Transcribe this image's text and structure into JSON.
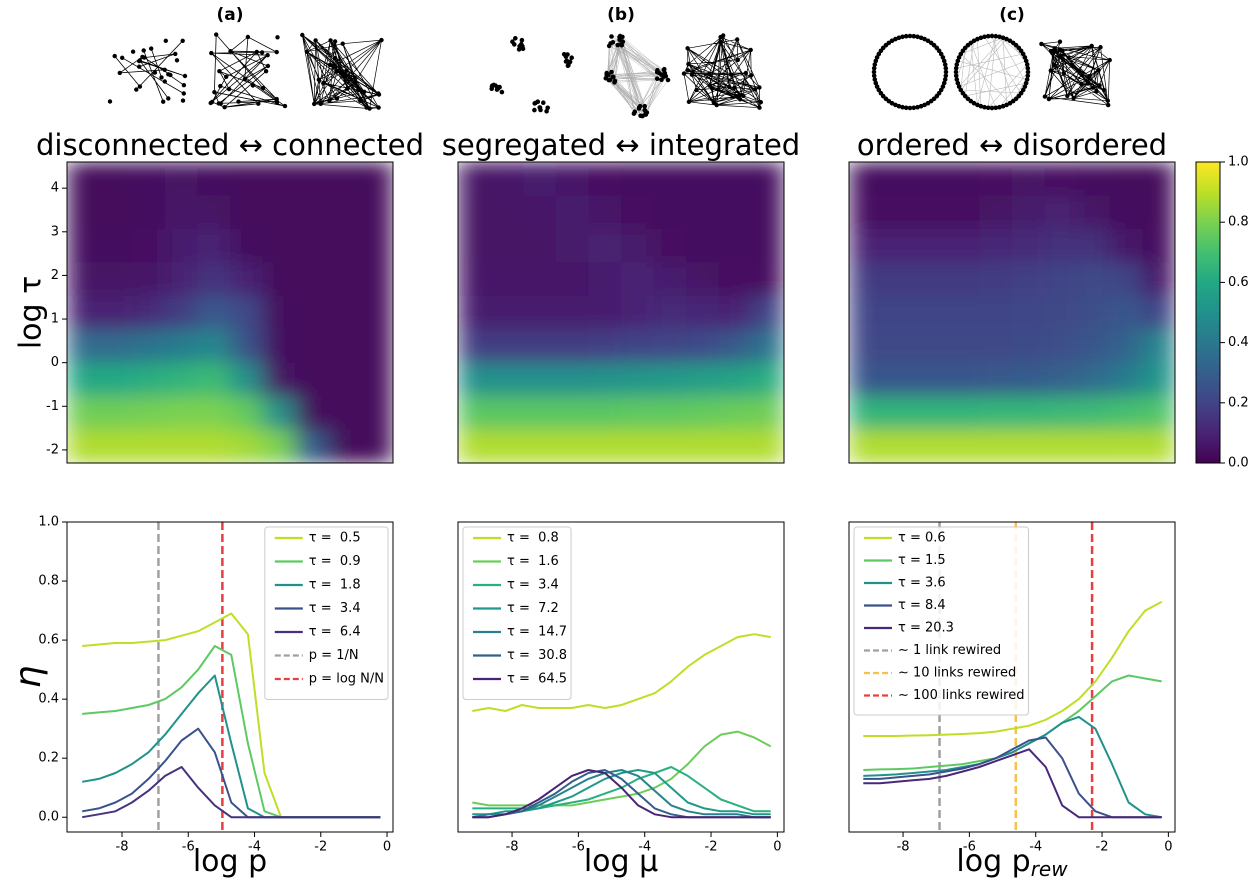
{
  "chart_data": [
    {
      "type": "heatmap",
      "title": "(a)",
      "subtitle": "disconnected ↔ connected",
      "ylabel": "log τ",
      "cmap": "viridis",
      "clim": [
        0,
        1
      ],
      "xlim": [
        -9.2,
        -0.2
      ],
      "ylim": [
        -2.3,
        4.6
      ],
      "yticks": [
        -2,
        -1,
        0,
        1,
        2,
        3,
        4
      ],
      "values": [
        [
          0.02,
          0.02,
          0.03,
          0.05,
          0.03,
          0.02,
          0.02,
          0.02,
          0.02,
          0.02
        ],
        [
          0.02,
          0.02,
          0.03,
          0.06,
          0.05,
          0.02,
          0.02,
          0.02,
          0.02,
          0.02
        ],
        [
          0.03,
          0.03,
          0.04,
          0.08,
          0.1,
          0.03,
          0.02,
          0.02,
          0.02,
          0.02
        ],
        [
          0.05,
          0.05,
          0.06,
          0.1,
          0.15,
          0.1,
          0.02,
          0.02,
          0.02,
          0.02
        ],
        [
          0.1,
          0.1,
          0.12,
          0.18,
          0.28,
          0.22,
          0.03,
          0.02,
          0.02,
          0.02
        ],
        [
          0.35,
          0.35,
          0.38,
          0.42,
          0.46,
          0.25,
          0.03,
          0.02,
          0.02,
          0.02
        ],
        [
          0.6,
          0.6,
          0.62,
          0.65,
          0.68,
          0.5,
          0.05,
          0.02,
          0.02,
          0.02
        ],
        [
          0.78,
          0.78,
          0.79,
          0.8,
          0.8,
          0.76,
          0.5,
          0.02,
          0.02,
          0.02
        ],
        [
          0.88,
          0.88,
          0.88,
          0.88,
          0.88,
          0.86,
          0.8,
          0.3,
          0.02,
          0.02
        ]
      ]
    },
    {
      "type": "heatmap",
      "title": "(b)",
      "subtitle": "segregated ↔ integrated",
      "cmap": "viridis",
      "clim": [
        0,
        1
      ],
      "xlim": [
        -9.2,
        -0.2
      ],
      "ylim": [
        -2.3,
        4.6
      ],
      "values": [
        [
          0.05,
          0.06,
          0.08,
          0.06,
          0.04,
          0.03,
          0.03,
          0.03,
          0.03,
          0.03
        ],
        [
          0.05,
          0.05,
          0.06,
          0.08,
          0.06,
          0.04,
          0.03,
          0.03,
          0.03,
          0.03
        ],
        [
          0.05,
          0.05,
          0.05,
          0.07,
          0.09,
          0.07,
          0.04,
          0.03,
          0.03,
          0.03
        ],
        [
          0.06,
          0.06,
          0.06,
          0.06,
          0.08,
          0.1,
          0.08,
          0.05,
          0.04,
          0.04
        ],
        [
          0.08,
          0.08,
          0.08,
          0.08,
          0.08,
          0.1,
          0.12,
          0.11,
          0.1,
          0.2
        ],
        [
          0.18,
          0.18,
          0.18,
          0.18,
          0.19,
          0.2,
          0.21,
          0.23,
          0.28,
          0.38
        ],
        [
          0.5,
          0.5,
          0.5,
          0.5,
          0.51,
          0.52,
          0.54,
          0.56,
          0.58,
          0.62
        ],
        [
          0.74,
          0.74,
          0.74,
          0.74,
          0.74,
          0.75,
          0.75,
          0.76,
          0.77,
          0.78
        ],
        [
          0.88,
          0.88,
          0.88,
          0.88,
          0.88,
          0.88,
          0.88,
          0.88,
          0.88,
          0.88
        ]
      ]
    },
    {
      "type": "heatmap",
      "title": "(c)",
      "subtitle": "ordered ↔ disordered",
      "cmap": "viridis",
      "clim": [
        0,
        1
      ],
      "xlim": [
        -9.2,
        -0.2
      ],
      "ylim": [
        -2.3,
        4.6
      ],
      "values": [
        [
          0.03,
          0.03,
          0.03,
          0.03,
          0.04,
          0.05,
          0.04,
          0.03,
          0.02,
          0.02
        ],
        [
          0.04,
          0.04,
          0.04,
          0.04,
          0.05,
          0.07,
          0.09,
          0.05,
          0.03,
          0.02
        ],
        [
          0.1,
          0.1,
          0.1,
          0.1,
          0.11,
          0.12,
          0.14,
          0.14,
          0.06,
          0.03
        ],
        [
          0.17,
          0.17,
          0.17,
          0.17,
          0.18,
          0.19,
          0.2,
          0.22,
          0.2,
          0.06
        ],
        [
          0.2,
          0.2,
          0.2,
          0.2,
          0.2,
          0.21,
          0.22,
          0.24,
          0.27,
          0.2
        ],
        [
          0.22,
          0.22,
          0.22,
          0.22,
          0.22,
          0.23,
          0.24,
          0.27,
          0.32,
          0.45
        ],
        [
          0.27,
          0.27,
          0.27,
          0.27,
          0.28,
          0.29,
          0.31,
          0.35,
          0.42,
          0.52
        ],
        [
          0.65,
          0.65,
          0.65,
          0.65,
          0.66,
          0.66,
          0.67,
          0.68,
          0.7,
          0.72
        ],
        [
          0.88,
          0.88,
          0.88,
          0.88,
          0.88,
          0.88,
          0.88,
          0.88,
          0.88,
          0.88
        ]
      ]
    },
    {
      "type": "colorbar",
      "cmap": "viridis",
      "ylim": [
        0,
        1
      ],
      "yticks": [
        {
          "value": 0,
          "label": "0.0"
        },
        0.2,
        0.4,
        0.6,
        0.8,
        {
          "value": 1,
          "label": "1.0"
        }
      ]
    },
    {
      "type": "line",
      "xlabel": "log p",
      "ylabel": "η",
      "legend": "upper right",
      "xlim": [
        -9.66,
        0.18
      ],
      "ylim": [
        -0.05,
        1.0
      ],
      "xticks": [
        -8,
        -6,
        -4,
        -2,
        0
      ],
      "yticks": [
        {
          "value": 0,
          "label": "0.0"
        },
        0.2,
        0.4,
        0.6,
        0.8,
        {
          "value": 1,
          "label": "1.0"
        }
      ],
      "x": [
        -9.2,
        -8.7,
        -8.2,
        -7.7,
        -7.2,
        -6.7,
        -6.2,
        -5.7,
        -5.2,
        -4.7,
        -4.2,
        -3.7,
        -3.2,
        -2.7,
        -2.2,
        -1.7,
        -1.2,
        -0.7,
        -0.2
      ],
      "series": [
        {
          "name": "τ =  0.5",
          "color": "#bddf26",
          "values": [
            0.58,
            0.585,
            0.59,
            0.59,
            0.595,
            0.6,
            0.615,
            0.63,
            0.66,
            0.69,
            0.62,
            0.15,
            0.0,
            0,
            0,
            0,
            0,
            0,
            0
          ]
        },
        {
          "name": "τ =  0.9",
          "color": "#5ec962",
          "values": [
            0.35,
            0.355,
            0.36,
            0.37,
            0.38,
            0.4,
            0.44,
            0.5,
            0.58,
            0.55,
            0.25,
            0.02,
            0,
            0,
            0,
            0,
            0,
            0,
            0
          ]
        },
        {
          "name": "τ =  1.8",
          "color": "#21918c",
          "values": [
            0.12,
            0.13,
            0.15,
            0.18,
            0.22,
            0.28,
            0.35,
            0.42,
            0.48,
            0.25,
            0.03,
            0,
            0,
            0,
            0,
            0,
            0,
            0,
            0
          ]
        },
        {
          "name": "τ =  3.4",
          "color": "#3b528b",
          "values": [
            0.02,
            0.03,
            0.05,
            0.08,
            0.13,
            0.19,
            0.26,
            0.3,
            0.22,
            0.05,
            0,
            0,
            0,
            0,
            0,
            0,
            0,
            0,
            0
          ]
        },
        {
          "name": "τ =  6.4",
          "color": "#46327e",
          "values": [
            0.0,
            0.01,
            0.02,
            0.05,
            0.09,
            0.14,
            0.17,
            0.1,
            0.04,
            0.0,
            0,
            0,
            0,
            0,
            0,
            0,
            0,
            0,
            0
          ]
        }
      ],
      "vlines": [
        {
          "name": "p = 1/N",
          "x": -6.9,
          "color": "#a0a0a0"
        },
        {
          "name": "p = log N/N",
          "x": -4.97,
          "color": "#e84040"
        }
      ]
    },
    {
      "type": "line",
      "xlabel": "log μ",
      "legend": "upper left",
      "xlim": [
        -9.63,
        0.2
      ],
      "ylim": [
        -0.05,
        1.0
      ],
      "xticks": [
        -8,
        -6,
        -4,
        -2,
        0
      ],
      "x": [
        -9.2,
        -8.7,
        -8.2,
        -7.7,
        -7.2,
        -6.7,
        -6.2,
        -5.7,
        -5.2,
        -4.7,
        -4.2,
        -3.7,
        -3.2,
        -2.7,
        -2.2,
        -1.7,
        -1.2,
        -0.7,
        -0.2
      ],
      "series": [
        {
          "name": "τ =  0.8",
          "color": "#bddf26",
          "values": [
            0.36,
            0.37,
            0.36,
            0.38,
            0.37,
            0.37,
            0.37,
            0.38,
            0.37,
            0.38,
            0.4,
            0.42,
            0.46,
            0.51,
            0.55,
            0.58,
            0.61,
            0.62,
            0.61
          ]
        },
        {
          "name": "τ =  1.6",
          "color": "#6ccd5a",
          "values": [
            0.05,
            0.04,
            0.04,
            0.04,
            0.04,
            0.04,
            0.04,
            0.05,
            0.06,
            0.07,
            0.08,
            0.1,
            0.13,
            0.18,
            0.24,
            0.28,
            0.29,
            0.27,
            0.24
          ]
        },
        {
          "name": "τ =  3.4",
          "color": "#2ab07f",
          "values": [
            0.03,
            0.03,
            0.03,
            0.03,
            0.03,
            0.04,
            0.05,
            0.06,
            0.08,
            0.1,
            0.13,
            0.15,
            0.17,
            0.14,
            0.1,
            0.06,
            0.04,
            0.02,
            0.02
          ]
        },
        {
          "name": "τ =  7.2",
          "color": "#1f9a8a",
          "values": [
            0.01,
            0.01,
            0.02,
            0.02,
            0.03,
            0.05,
            0.07,
            0.1,
            0.13,
            0.15,
            0.16,
            0.15,
            0.1,
            0.05,
            0.03,
            0.02,
            0.02,
            0.01,
            0.01
          ]
        },
        {
          "name": "τ =  14.7",
          "color": "#26828e",
          "values": [
            0.0,
            0.01,
            0.01,
            0.02,
            0.04,
            0.07,
            0.1,
            0.13,
            0.15,
            0.16,
            0.14,
            0.09,
            0.04,
            0.02,
            0.01,
            0.01,
            0.01,
            0.0,
            0.0
          ]
        },
        {
          "name": "τ =  30.8",
          "color": "#355f8d",
          "values": [
            0,
            0,
            0.01,
            0.02,
            0.05,
            0.08,
            0.12,
            0.15,
            0.16,
            0.13,
            0.08,
            0.03,
            0.01,
            0,
            0,
            0,
            0,
            0,
            0
          ]
        },
        {
          "name": "τ =  64.5",
          "color": "#482475",
          "values": [
            0,
            0,
            0.01,
            0.03,
            0.06,
            0.1,
            0.14,
            0.16,
            0.15,
            0.1,
            0.04,
            0.01,
            0,
            0,
            0,
            0,
            0,
            0,
            0
          ]
        }
      ]
    },
    {
      "type": "line",
      "xlabel": "log p",
      "xlabel_sub": "rew",
      "legend": "upper left",
      "xlim": [
        -9.63,
        0.2
      ],
      "ylim": [
        -0.05,
        1.0
      ],
      "xticks": [
        -8,
        -6,
        -4,
        -2,
        0
      ],
      "x": [
        -9.2,
        -8.7,
        -8.2,
        -7.7,
        -7.2,
        -6.7,
        -6.2,
        -5.7,
        -5.2,
        -4.7,
        -4.2,
        -3.7,
        -3.2,
        -2.7,
        -2.2,
        -1.7,
        -1.2,
        -0.7,
        -0.2
      ],
      "series": [
        {
          "name": "τ = 0.6",
          "color": "#bddf26",
          "values": [
            0.275,
            0.275,
            0.275,
            0.277,
            0.278,
            0.28,
            0.282,
            0.285,
            0.29,
            0.3,
            0.31,
            0.33,
            0.36,
            0.4,
            0.46,
            0.54,
            0.63,
            0.7,
            0.73
          ]
        },
        {
          "name": "τ = 1.5",
          "color": "#5ec962",
          "values": [
            0.16,
            0.162,
            0.163,
            0.165,
            0.17,
            0.175,
            0.18,
            0.19,
            0.2,
            0.22,
            0.25,
            0.28,
            0.32,
            0.36,
            0.41,
            0.46,
            0.48,
            0.47,
            0.46
          ]
        },
        {
          "name": "τ = 3.6",
          "color": "#21918c",
          "values": [
            0.14,
            0.142,
            0.145,
            0.15,
            0.155,
            0.16,
            0.17,
            0.18,
            0.2,
            0.22,
            0.25,
            0.28,
            0.32,
            0.34,
            0.3,
            0.18,
            0.05,
            0.01,
            0.0
          ]
        },
        {
          "name": "τ = 8.4",
          "color": "#3b528b",
          "values": [
            0.13,
            0.13,
            0.135,
            0.14,
            0.145,
            0.155,
            0.165,
            0.18,
            0.2,
            0.23,
            0.26,
            0.27,
            0.2,
            0.08,
            0.02,
            0,
            0,
            0,
            0
          ]
        },
        {
          "name": "τ = 20.3",
          "color": "#482878",
          "values": [
            0.115,
            0.115,
            0.12,
            0.125,
            0.13,
            0.14,
            0.155,
            0.17,
            0.19,
            0.21,
            0.23,
            0.17,
            0.04,
            0.0,
            0,
            0,
            0,
            0,
            0
          ]
        }
      ],
      "vlines": [
        {
          "name": "∼ 1 link rewired",
          "x": -6.9,
          "color": "#a0a0a0"
        },
        {
          "name": "∼ 10 links rewired",
          "x": -4.6,
          "color": "#f7c04a"
        },
        {
          "name": "∼ 100 links rewired",
          "x": -2.3,
          "color": "#e84040"
        }
      ]
    }
  ]
}
